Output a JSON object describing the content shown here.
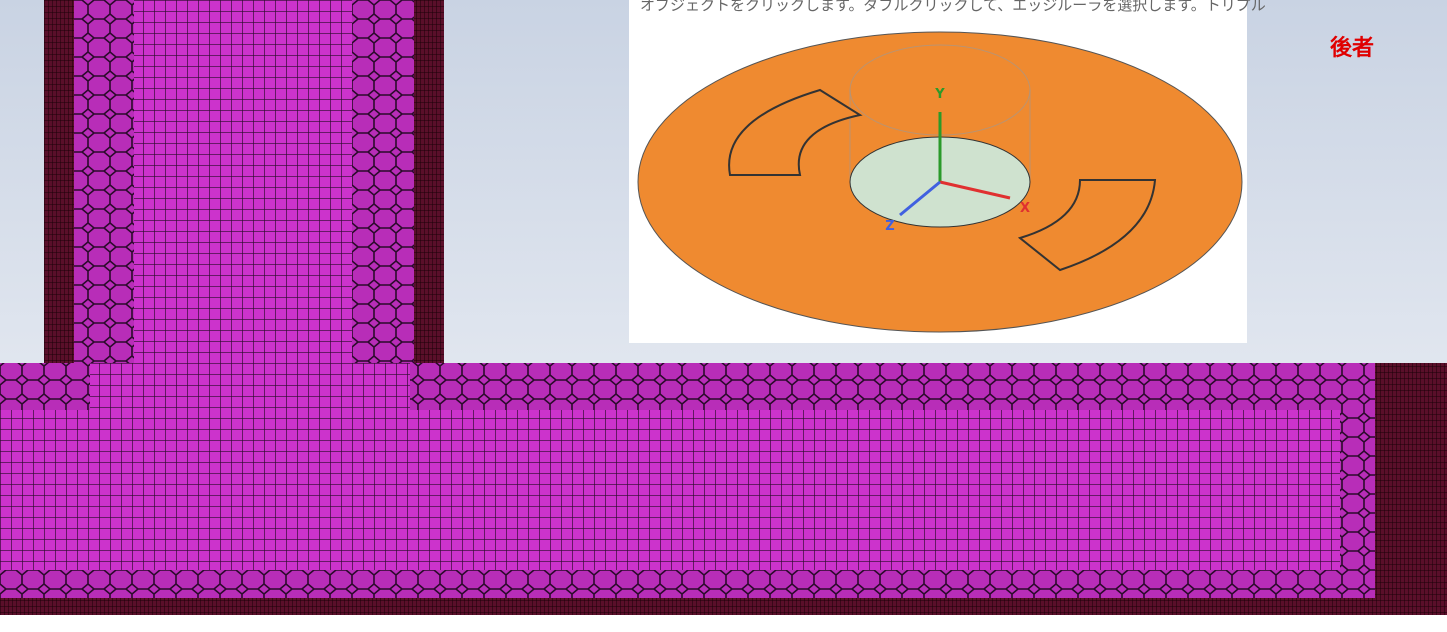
{
  "header": {
    "label": "後者"
  },
  "inset": {
    "caption": "オブジェクトをクリックします。ダブルクリックして、エッジルーラを選択します。トリプル",
    "axes": {
      "x": "X",
      "y": "Y",
      "z": "Z"
    }
  }
}
